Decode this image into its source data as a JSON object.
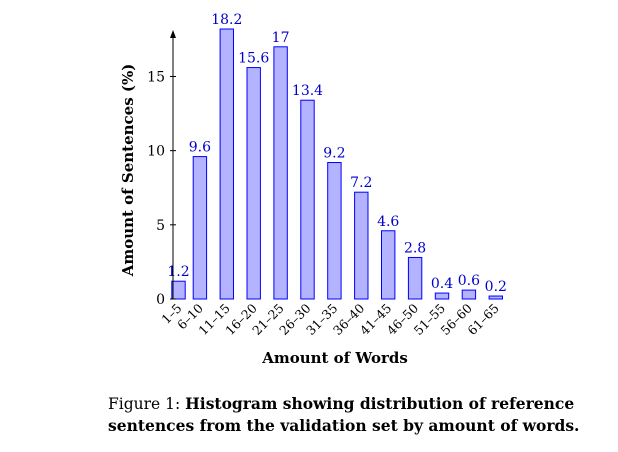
{
  "chart_data": {
    "type": "bar",
    "categories": [
      "1–5",
      "6–10",
      "11–15",
      "16–20",
      "21–25",
      "26–30",
      "31–35",
      "36–40",
      "41–45",
      "46–50",
      "51–55",
      "56–60",
      "61–65"
    ],
    "values": [
      1.2,
      9.6,
      18.2,
      15.6,
      17,
      13.4,
      9.2,
      7.2,
      4.6,
      2.8,
      0.4,
      0.6,
      0.2
    ],
    "data_labels": [
      "1.2",
      "9.6",
      "18.2",
      "15.6",
      "17",
      "13.4",
      "9.2",
      "7.2",
      "4.6",
      "2.8",
      "0.4",
      "0.6",
      "0.2"
    ],
    "xlabel": "Amount of Words",
    "ylabel": "Amount of Sentences (%)",
    "ylim": [
      0,
      18.2
    ],
    "yticks": [
      0,
      5,
      10,
      15
    ],
    "grid": false,
    "bar_fill": "#b3b3ff",
    "bar_stroke": "#0000ff",
    "label_color": "#0000cc"
  },
  "caption": {
    "label": "Figure 1:",
    "text": "Histogram showing distribution of reference sentences from the validation set by amount of words."
  }
}
